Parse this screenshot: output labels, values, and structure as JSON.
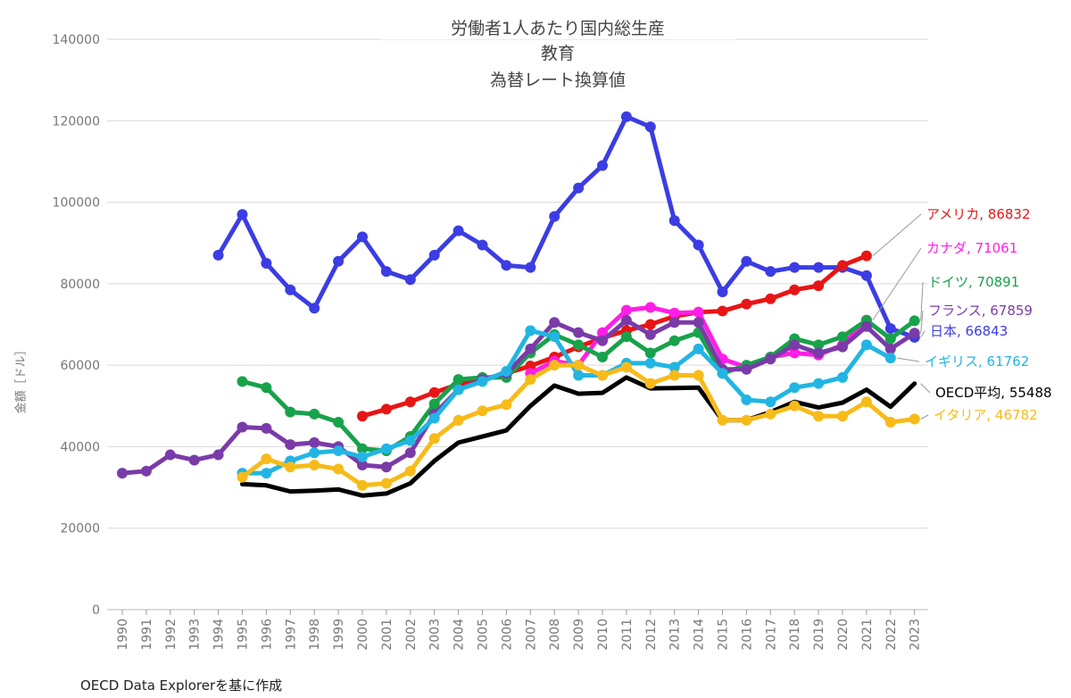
{
  "title_lines": [
    "労働者1人あたり国内総生産",
    "教育",
    "為替レート換算値"
  ],
  "ylabel": "金額［ドル］",
  "source": "OECD Data Explorerを基に作成",
  "chart_data": {
    "type": "line",
    "title": "労働者1人あたり国内総生産 教育 為替レート換算値",
    "xlabel": "",
    "ylabel": "金額［ドル］",
    "ylim": [
      0,
      140000
    ],
    "yticks": [
      0,
      20000,
      40000,
      60000,
      80000,
      100000,
      120000,
      140000
    ],
    "x": [
      "1990",
      "1991",
      "1992",
      "1993",
      "1994",
      "1995",
      "1996",
      "1997",
      "1998",
      "1999",
      "2000",
      "2001",
      "2002",
      "2003",
      "2004",
      "2005",
      "2006",
      "2007",
      "2008",
      "2009",
      "2010",
      "2011",
      "2012",
      "2013",
      "2014",
      "2015",
      "2016",
      "2017",
      "2018",
      "2019",
      "2020",
      "2021",
      "2022",
      "2023"
    ],
    "grid": "horizontal",
    "series": [
      {
        "name": "日本",
        "label": "日本, 66843",
        "color": "#3b3de3",
        "markers": true,
        "values": [
          null,
          null,
          null,
          null,
          87000,
          97000,
          85000,
          78500,
          74000,
          85500,
          91500,
          83000,
          81000,
          87000,
          93000,
          89500,
          84500,
          84000,
          96500,
          103500,
          109000,
          121000,
          118500,
          95500,
          89500,
          78000,
          85500,
          83000,
          84000,
          84000,
          84000,
          82000,
          69000,
          66843
        ]
      },
      {
        "name": "アメリカ",
        "label": "アメリカ, 86832",
        "color": "#e81515",
        "markers": true,
        "values": [
          null,
          null,
          null,
          null,
          null,
          null,
          null,
          null,
          null,
          null,
          47500,
          49200,
          51000,
          53300,
          55300,
          56400,
          58000,
          59800,
          62000,
          64500,
          66700,
          68500,
          70000,
          72000,
          73000,
          73300,
          75000,
          76300,
          78500,
          79500,
          84500,
          86832,
          null,
          null
        ]
      },
      {
        "name": "カナダ",
        "label": "カナダ, 71061",
        "color": "#ff1ee6",
        "markers": true,
        "values": [
          null,
          null,
          null,
          null,
          null,
          null,
          null,
          null,
          null,
          null,
          null,
          null,
          null,
          null,
          null,
          null,
          null,
          58000,
          61000,
          60000,
          68000,
          73500,
          74200,
          72800,
          73000,
          61500,
          59500,
          62000,
          63000,
          62500,
          65000,
          71061,
          null,
          null
        ]
      },
      {
        "name": "ドイツ",
        "label": "ドイツ, 70891",
        "color": "#18a24a",
        "markers": true,
        "values": [
          null,
          null,
          null,
          null,
          null,
          56000,
          54500,
          48500,
          48000,
          46000,
          39500,
          39000,
          42500,
          50500,
          56500,
          57000,
          57000,
          63000,
          67500,
          65000,
          62000,
          67000,
          63000,
          66000,
          68000,
          58000,
          60000,
          62000,
          66500,
          65000,
          67000,
          71000,
          66500,
          70891
        ]
      },
      {
        "name": "フランス",
        "label": "フランス, 67859",
        "color": "#7a3ba8",
        "markers": true,
        "values": [
          33500,
          34000,
          38000,
          36700,
          38000,
          44800,
          44500,
          40500,
          41000,
          40000,
          35500,
          35000,
          38500,
          48000,
          54000,
          56500,
          58000,
          64000,
          70500,
          68000,
          66000,
          71000,
          67500,
          70500,
          70500,
          59000,
          59000,
          61500,
          65000,
          63000,
          64500,
          69500,
          64000,
          67859
        ]
      },
      {
        "name": "イギリス",
        "label": "イギリス, 61762",
        "color": "#22b5e3",
        "markers": true,
        "values": [
          null,
          null,
          null,
          null,
          null,
          33500,
          33500,
          36500,
          38500,
          39000,
          37500,
          39500,
          41500,
          47000,
          54000,
          56000,
          58500,
          68500,
          67000,
          57500,
          57500,
          60500,
          60500,
          59500,
          64000,
          58000,
          51500,
          51000,
          54500,
          55500,
          57000,
          65000,
          61762,
          null
        ]
      },
      {
        "name": "OECD平均",
        "label": "OECD平均, 55488",
        "color": "#000000",
        "markers": false,
        "values": [
          null,
          null,
          null,
          null,
          null,
          30800,
          30500,
          29000,
          29200,
          29500,
          28000,
          28500,
          31000,
          36500,
          41000,
          42500,
          44000,
          50000,
          55000,
          53000,
          53200,
          57000,
          54300,
          54400,
          54500,
          46500,
          46500,
          48500,
          51000,
          49600,
          50800,
          54000,
          49800,
          55488
        ]
      },
      {
        "name": "イタリア",
        "label": "イタリア, 46782",
        "color": "#f7bb19",
        "markers": true,
        "values": [
          null,
          null,
          null,
          null,
          null,
          32500,
          37000,
          35000,
          35500,
          34500,
          30500,
          31000,
          34000,
          42000,
          46500,
          48800,
          50300,
          56500,
          60000,
          60000,
          57500,
          59500,
          55500,
          57500,
          57500,
          46500,
          46500,
          48000,
          50000,
          47500,
          47500,
          51000,
          46000,
          46782
        ]
      }
    ]
  }
}
